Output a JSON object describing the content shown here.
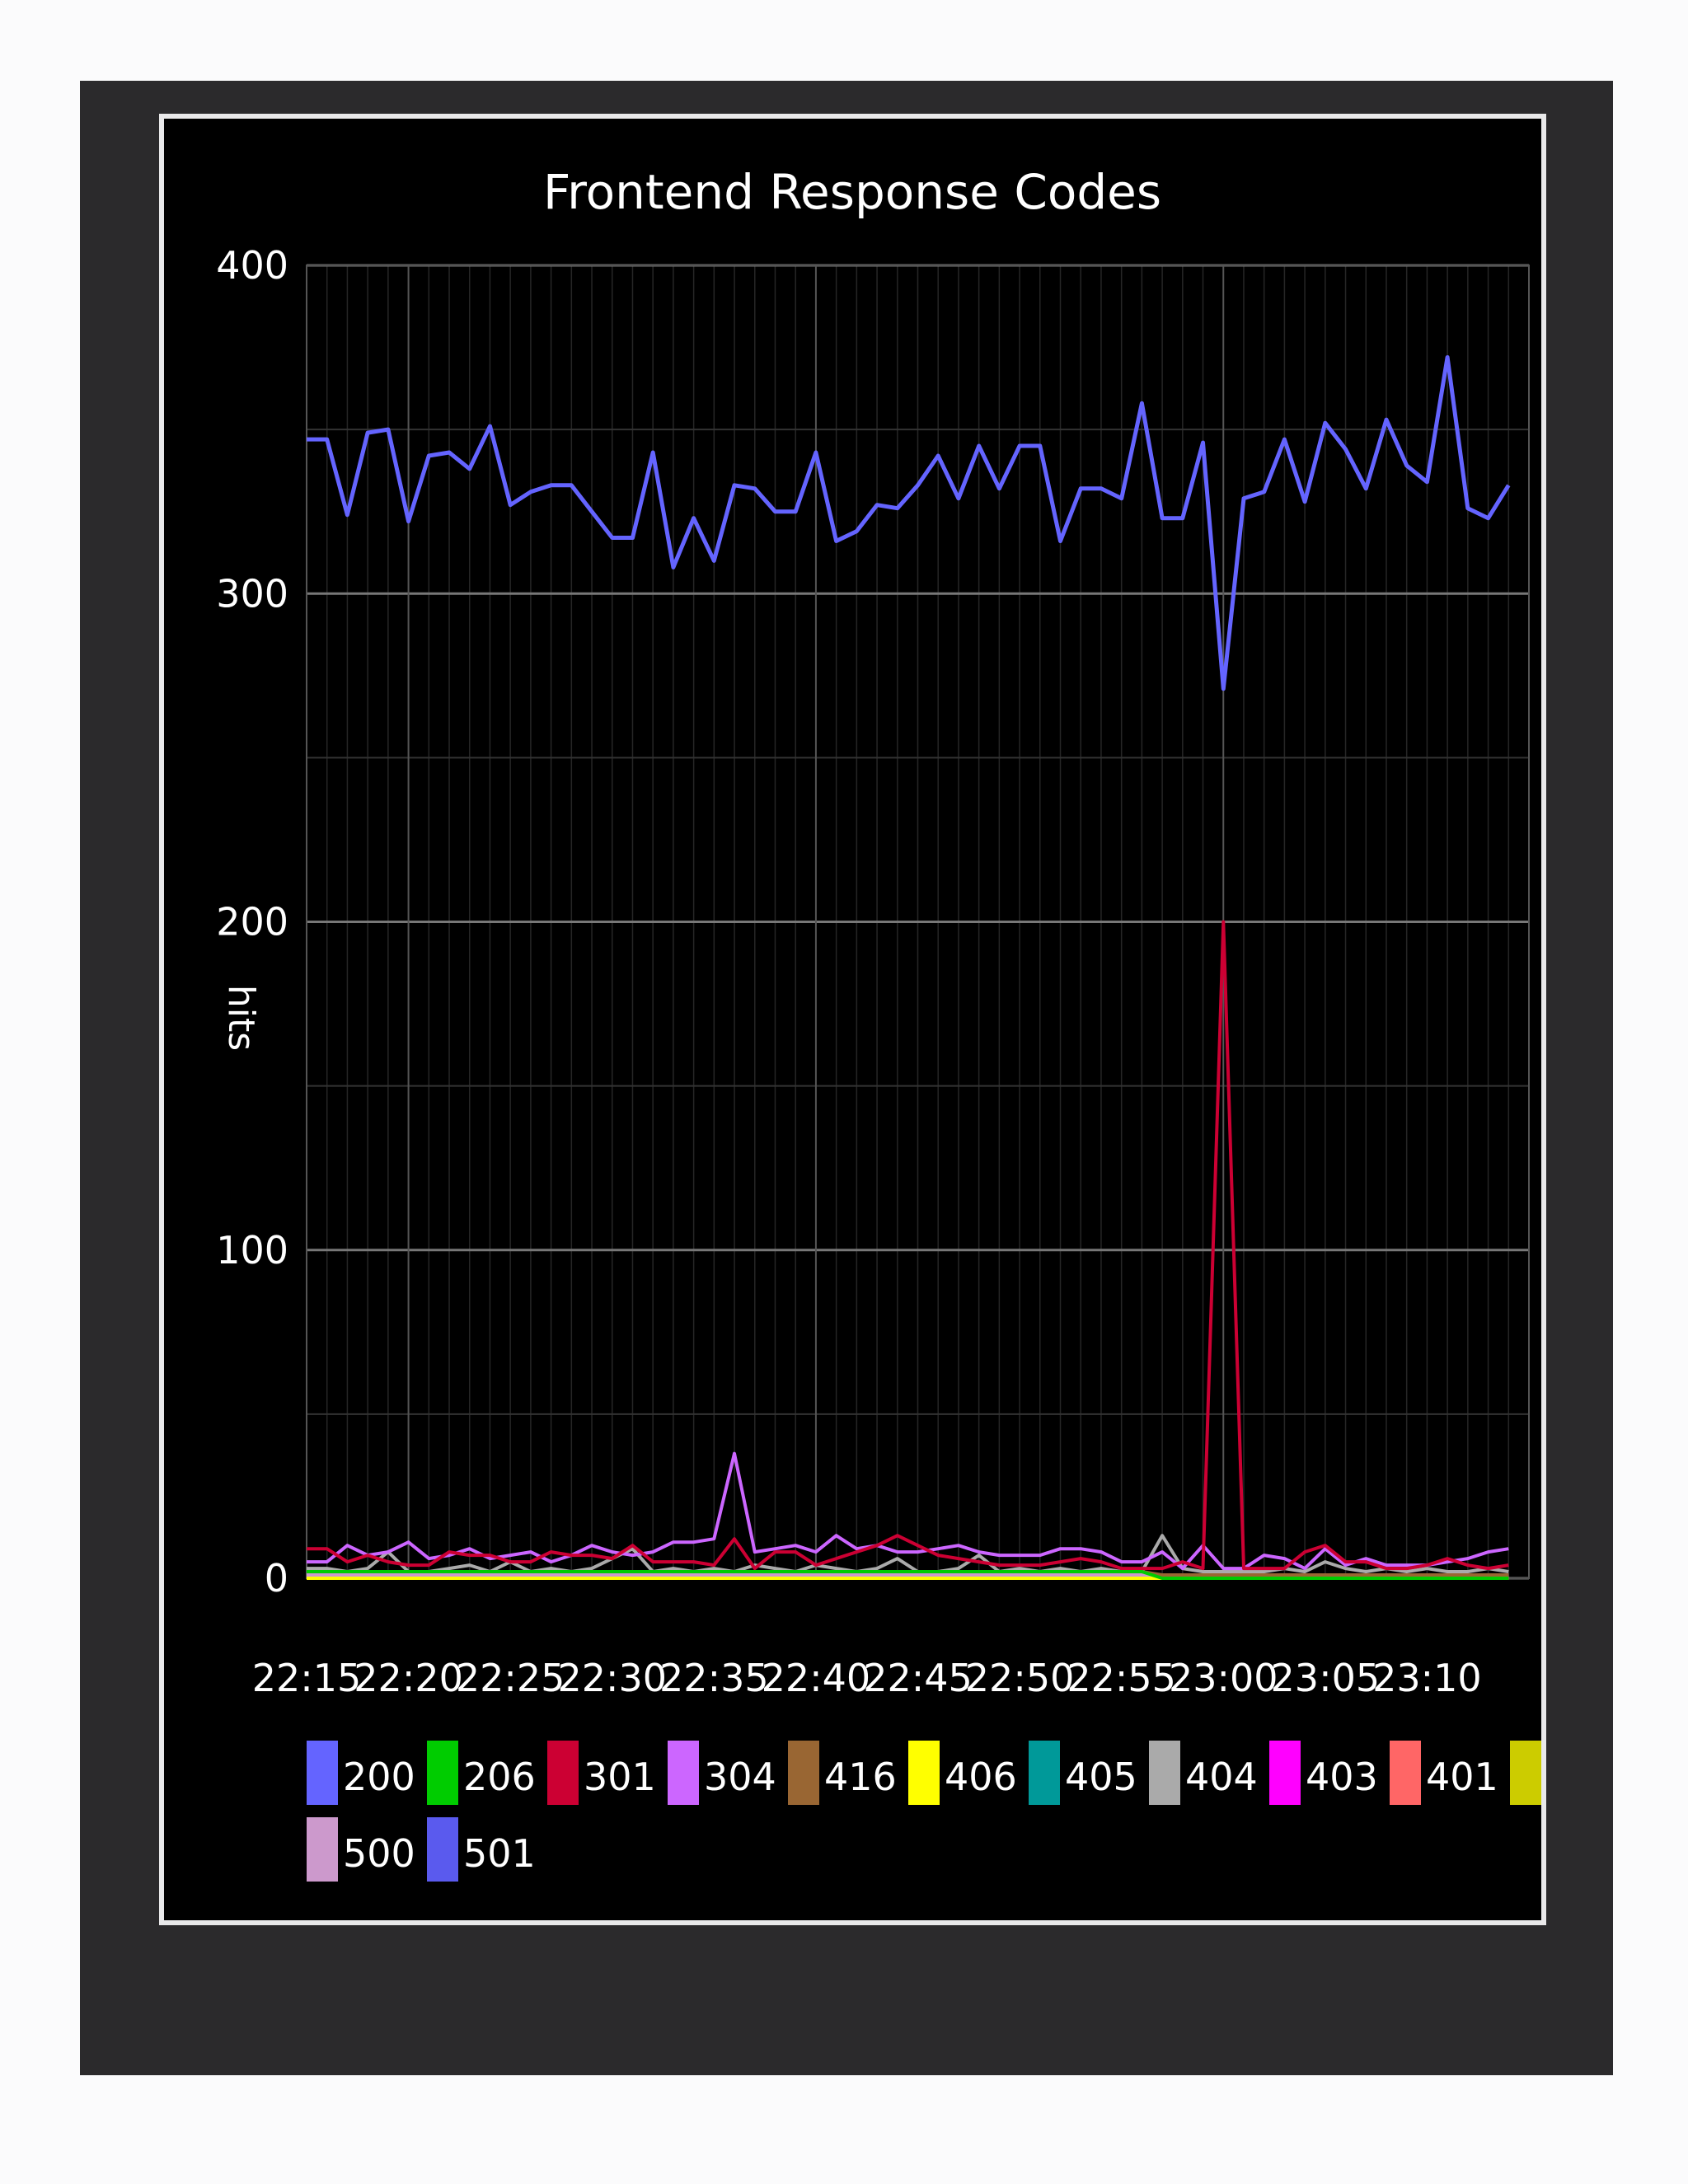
{
  "chart_data": {
    "type": "line",
    "title": "Frontend Response Codes",
    "xlabel": "",
    "ylabel": "hits",
    "ylim": [
      0,
      400
    ],
    "y_ticks": [
      "0",
      "100",
      "200",
      "300",
      "400"
    ],
    "x_ticks": [
      "22:15",
      "22:20",
      "22:25",
      "22:30",
      "22:35",
      "22:40",
      "22:45",
      "22:50",
      "22:55",
      "23:00",
      "23:05",
      "23:10"
    ],
    "x_start": "22:15",
    "x_end": "23:15",
    "grid": true,
    "legend_position": "bottom",
    "series": [
      {
        "name": "200",
        "color": "#6464ff",
        "values": [
          347,
          347,
          324,
          349,
          350,
          322,
          342,
          343,
          338,
          351,
          327,
          331,
          333,
          333,
          325,
          317,
          317,
          343,
          308,
          323,
          310,
          333,
          332,
          325,
          325,
          343,
          316,
          319,
          327,
          326,
          333,
          342,
          329,
          345,
          332,
          345,
          345,
          316,
          332,
          332,
          329,
          358,
          323,
          323,
          346,
          271,
          329,
          331,
          347,
          328,
          352,
          344,
          332,
          353,
          339,
          334,
          372,
          326,
          323,
          333
        ]
      },
      {
        "name": "206",
        "color": "#00cc00",
        "values": [
          2,
          2,
          2,
          2,
          2,
          2,
          2,
          2,
          2,
          2,
          2,
          2,
          2,
          2,
          2,
          2,
          2,
          2,
          2,
          2,
          2,
          2,
          2,
          2,
          2,
          2,
          2,
          2,
          2,
          2,
          2,
          2,
          2,
          2,
          2,
          2,
          2,
          2,
          2,
          2,
          2,
          2,
          0,
          0,
          0,
          0,
          0,
          0,
          0,
          0,
          0,
          0,
          0,
          0,
          0,
          0,
          0,
          0,
          0,
          0
        ]
      },
      {
        "name": "301",
        "color": "#cc0033",
        "values": [
          9,
          9,
          5,
          7,
          5,
          4,
          4,
          8,
          7,
          7,
          5,
          5,
          8,
          7,
          7,
          6,
          10,
          5,
          5,
          5,
          4,
          12,
          3,
          8,
          8,
          4,
          6,
          8,
          10,
          13,
          10,
          7,
          6,
          5,
          4,
          4,
          4,
          5,
          6,
          5,
          3,
          3,
          3,
          5,
          3,
          200,
          3,
          3,
          3,
          8,
          10,
          5,
          5,
          3,
          3,
          4,
          6,
          4,
          3,
          4
        ]
      },
      {
        "name": "304",
        "color": "#cc66ff",
        "values": [
          5,
          5,
          10,
          7,
          8,
          11,
          6,
          7,
          9,
          6,
          7,
          8,
          5,
          7,
          10,
          8,
          7,
          8,
          11,
          11,
          12,
          38,
          8,
          9,
          10,
          8,
          13,
          9,
          10,
          8,
          8,
          9,
          10,
          8,
          7,
          7,
          7,
          9,
          9,
          8,
          5,
          5,
          8,
          3,
          10,
          3,
          3,
          7,
          6,
          3,
          9,
          4,
          6,
          4,
          4,
          4,
          5,
          6,
          8,
          9
        ]
      },
      {
        "name": "416",
        "color": "#996633",
        "values": [
          2,
          2,
          2,
          2,
          2,
          2,
          2,
          2,
          2,
          2,
          2,
          2,
          2,
          2,
          2,
          2,
          2,
          2,
          2,
          2,
          2,
          2,
          2,
          2,
          2,
          2,
          2,
          2,
          2,
          2,
          2,
          2,
          2,
          2,
          2,
          2,
          2,
          2,
          2,
          2,
          2,
          2,
          1,
          1,
          1,
          1,
          1,
          1,
          1,
          1,
          1,
          1,
          1,
          1,
          1,
          1,
          1,
          1,
          1,
          1
        ]
      },
      {
        "name": "406",
        "color": "#ffff00",
        "values": [
          0,
          0,
          0,
          0,
          0,
          0,
          0,
          0,
          0,
          0,
          0,
          0,
          0,
          0,
          0,
          0,
          0,
          0,
          0,
          0,
          0,
          0,
          0,
          0,
          0,
          0,
          0,
          0,
          0,
          0,
          0,
          0,
          0,
          0,
          0,
          0,
          0,
          0,
          0,
          0,
          0,
          0,
          0,
          0,
          0,
          0,
          0,
          0,
          0,
          0,
          0,
          0,
          0,
          0,
          0,
          0,
          0,
          0,
          0,
          0
        ]
      },
      {
        "name": "405",
        "color": "#009999",
        "values": [
          0,
          0,
          0,
          0,
          0,
          0,
          0,
          0,
          0,
          0,
          0,
          0,
          0,
          0,
          0,
          0,
          0,
          0,
          0,
          0,
          0,
          0,
          0,
          0,
          0,
          0,
          0,
          0,
          0,
          0,
          0,
          0,
          0,
          0,
          0,
          0,
          0,
          0,
          0,
          0,
          0,
          0,
          0,
          0,
          0,
          0,
          0,
          0,
          0,
          0,
          0,
          0,
          0,
          0,
          0,
          0,
          0,
          0,
          0,
          0
        ]
      },
      {
        "name": "404",
        "color": "#aaaaaa",
        "values": [
          3,
          3,
          2,
          3,
          8,
          2,
          2,
          3,
          4,
          2,
          5,
          2,
          3,
          2,
          3,
          6,
          9,
          2,
          3,
          2,
          3,
          2,
          4,
          3,
          2,
          4,
          3,
          2,
          3,
          6,
          2,
          2,
          3,
          7,
          2,
          3,
          2,
          3,
          2,
          3,
          2,
          2,
          13,
          3,
          2,
          2,
          2,
          2,
          3,
          2,
          5,
          3,
          2,
          3,
          2,
          3,
          2,
          2,
          3,
          2
        ]
      },
      {
        "name": "403",
        "color": "#ff00ff",
        "values": [
          0,
          0,
          0,
          0,
          0,
          0,
          0,
          0,
          0,
          0,
          0,
          0,
          0,
          0,
          0,
          0,
          0,
          0,
          0,
          0,
          0,
          0,
          0,
          0,
          0,
          0,
          0,
          0,
          0,
          0,
          0,
          0,
          0,
          0,
          0,
          0,
          0,
          0,
          0,
          0,
          0,
          0,
          0,
          0,
          0,
          0,
          0,
          0,
          0,
          0,
          0,
          0,
          0,
          0,
          0,
          0,
          0,
          0,
          0,
          0
        ]
      },
      {
        "name": "401",
        "color": "#ff6666",
        "values": [
          0,
          0,
          0,
          0,
          0,
          0,
          0,
          0,
          0,
          0,
          0,
          0,
          0,
          0,
          0,
          0,
          0,
          0,
          0,
          0,
          0,
          0,
          0,
          0,
          0,
          0,
          0,
          0,
          0,
          0,
          0,
          0,
          0,
          0,
          0,
          0,
          0,
          0,
          0,
          0,
          0,
          0,
          0,
          0,
          0,
          0,
          0,
          0,
          0,
          0,
          0,
          0,
          0,
          0,
          0,
          0,
          0,
          0,
          0,
          0
        ]
      },
      {
        "name": "",
        "color": "#cccc00",
        "values": [
          0,
          0,
          0,
          0,
          0,
          0,
          0,
          0,
          0,
          0,
          0,
          0,
          0,
          0,
          0,
          0,
          0,
          0,
          0,
          0,
          0,
          0,
          0,
          0,
          0,
          0,
          0,
          0,
          0,
          0,
          0,
          0,
          0,
          0,
          0,
          0,
          0,
          0,
          0,
          0,
          0,
          0,
          0,
          0,
          0,
          0,
          0,
          0,
          0,
          0,
          0,
          0,
          0,
          0,
          0,
          0,
          0,
          0,
          0,
          0
        ]
      },
      {
        "name": "500",
        "color": "#cc99cc",
        "values": [
          1,
          1,
          1,
          1,
          1,
          1,
          1,
          1,
          1,
          1,
          1,
          1,
          1,
          1,
          1,
          1,
          1,
          1,
          1,
          1,
          1,
          1,
          1,
          1,
          1,
          1,
          1,
          1,
          1,
          1,
          1,
          1,
          1,
          1,
          1,
          1,
          1,
          1,
          1,
          1,
          1,
          1,
          1,
          1,
          1,
          1,
          1,
          1,
          1,
          1,
          1,
          1,
          1,
          1,
          1,
          1,
          1,
          1,
          1,
          1
        ]
      },
      {
        "name": "501",
        "color": "#5a5aee",
        "values": [
          0,
          0,
          0,
          0,
          0,
          0,
          0,
          0,
          0,
          0,
          0,
          0,
          0,
          0,
          0,
          0,
          0,
          0,
          0,
          0,
          0,
          0,
          0,
          0,
          0,
          0,
          0,
          0,
          0,
          0,
          0,
          0,
          0,
          0,
          0,
          0,
          0,
          0,
          0,
          0,
          0,
          0,
          0,
          0,
          0,
          0,
          0,
          0,
          0,
          0,
          0,
          0,
          0,
          0,
          0,
          0,
          0,
          0,
          0,
          0
        ]
      }
    ]
  }
}
